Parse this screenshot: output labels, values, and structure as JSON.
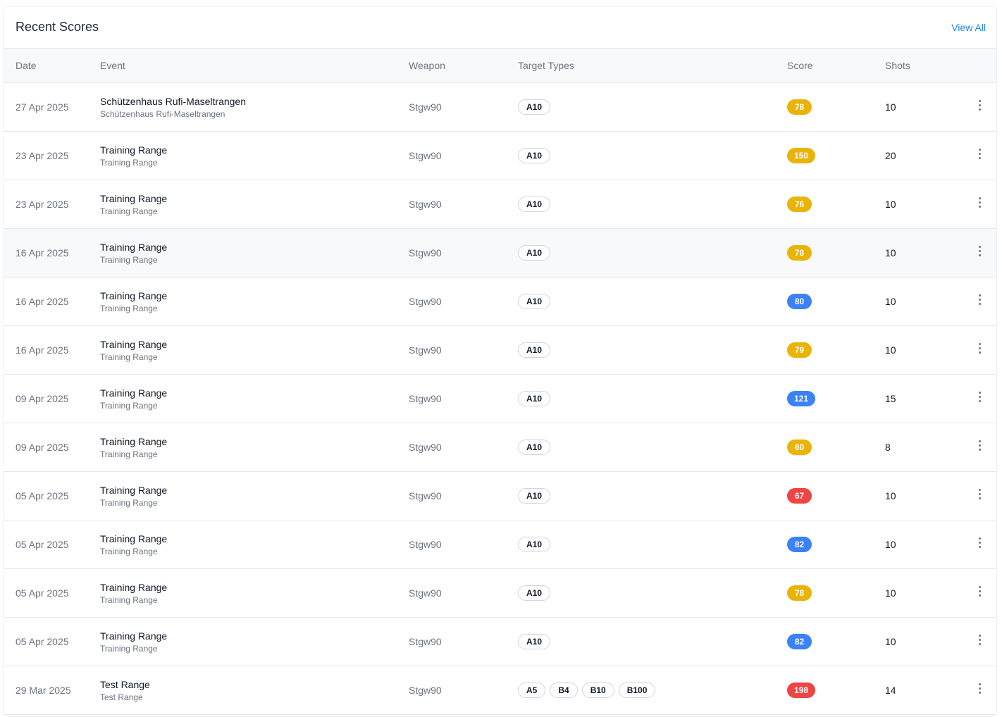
{
  "card": {
    "title": "Recent Scores",
    "view_all": "View All"
  },
  "columns": {
    "date": "Date",
    "event": "Event",
    "weapon": "Weapon",
    "targets": "Target Types",
    "score": "Score",
    "shots": "Shots"
  },
  "colors": {
    "score_yellow": "#eab308",
    "score_blue": "#3b82f6",
    "score_red": "#ef4444",
    "link_blue": "#1e88e5"
  },
  "rows": [
    {
      "date": "27 Apr 2025",
      "event": "Schützenhaus Rufi-Maseltrangen",
      "location": "Schützenhaus Rufi-Maseltrangen",
      "weapon": "Stgw90",
      "targets": [
        "A10"
      ],
      "score": "78",
      "score_color": "yellow",
      "shots": "10"
    },
    {
      "date": "23 Apr 2025",
      "event": "Training Range",
      "location": "Training Range",
      "weapon": "Stgw90",
      "targets": [
        "A10"
      ],
      "score": "150",
      "score_color": "yellow",
      "shots": "20"
    },
    {
      "date": "23 Apr 2025",
      "event": "Training Range",
      "location": "Training Range",
      "weapon": "Stgw90",
      "targets": [
        "A10"
      ],
      "score": "76",
      "score_color": "yellow",
      "shots": "10"
    },
    {
      "date": "16 Apr 2025",
      "event": "Training Range",
      "location": "Training Range",
      "weapon": "Stgw90",
      "targets": [
        "A10"
      ],
      "score": "78",
      "score_color": "yellow",
      "shots": "10",
      "hover": true
    },
    {
      "date": "16 Apr 2025",
      "event": "Training Range",
      "location": "Training Range",
      "weapon": "Stgw90",
      "targets": [
        "A10"
      ],
      "score": "80",
      "score_color": "blue",
      "shots": "10"
    },
    {
      "date": "16 Apr 2025",
      "event": "Training Range",
      "location": "Training Range",
      "weapon": "Stgw90",
      "targets": [
        "A10"
      ],
      "score": "79",
      "score_color": "yellow",
      "shots": "10"
    },
    {
      "date": "09 Apr 2025",
      "event": "Training Range",
      "location": "Training Range",
      "weapon": "Stgw90",
      "targets": [
        "A10"
      ],
      "score": "121",
      "score_color": "blue",
      "shots": "15"
    },
    {
      "date": "09 Apr 2025",
      "event": "Training Range",
      "location": "Training Range",
      "weapon": "Stgw90",
      "targets": [
        "A10"
      ],
      "score": "60",
      "score_color": "yellow",
      "shots": "8"
    },
    {
      "date": "05 Apr 2025",
      "event": "Training Range",
      "location": "Training Range",
      "weapon": "Stgw90",
      "targets": [
        "A10"
      ],
      "score": "67",
      "score_color": "red",
      "shots": "10"
    },
    {
      "date": "05 Apr 2025",
      "event": "Training Range",
      "location": "Training Range",
      "weapon": "Stgw90",
      "targets": [
        "A10"
      ],
      "score": "82",
      "score_color": "blue",
      "shots": "10"
    },
    {
      "date": "05 Apr 2025",
      "event": "Training Range",
      "location": "Training Range",
      "weapon": "Stgw90",
      "targets": [
        "A10"
      ],
      "score": "78",
      "score_color": "yellow",
      "shots": "10"
    },
    {
      "date": "05 Apr 2025",
      "event": "Training Range",
      "location": "Training Range",
      "weapon": "Stgw90",
      "targets": [
        "A10"
      ],
      "score": "82",
      "score_color": "blue",
      "shots": "10"
    },
    {
      "date": "29 Mar 2025",
      "event": "Test Range",
      "location": "Test Range",
      "weapon": "Stgw90",
      "targets": [
        "A5",
        "B4",
        "B10",
        "B100"
      ],
      "score": "198",
      "score_color": "red",
      "shots": "14"
    }
  ]
}
